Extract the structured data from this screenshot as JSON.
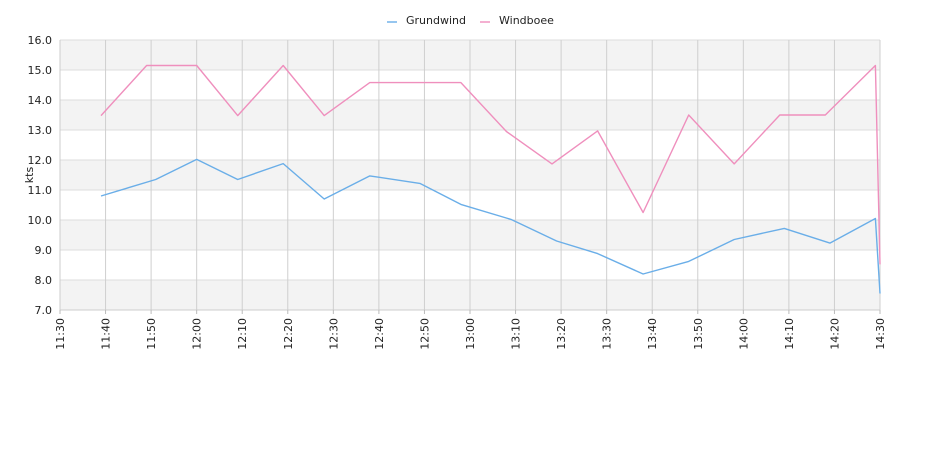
{
  "chart_data": {
    "type": "line",
    "title": "",
    "xlabel": "",
    "ylabel": "kts",
    "ylim": [
      7.0,
      16.0
    ],
    "y_ticks": [
      "7.0",
      "8.0",
      "9.0",
      "10.0",
      "11.0",
      "12.0",
      "13.0",
      "14.0",
      "15.0",
      "16.0"
    ],
    "x_ticks": [
      "11:30",
      "11:40",
      "11:50",
      "12:00",
      "12:10",
      "12:20",
      "12:30",
      "12:40",
      "12:50",
      "13:00",
      "13:10",
      "13:20",
      "13:30",
      "13:40",
      "13:50",
      "14:00",
      "14:10",
      "14:20",
      "14:30"
    ],
    "grid": true,
    "legend_position": "top-center",
    "series": [
      {
        "name": "Grundwind",
        "color": "#6aaee8",
        "x": [
          "11:39",
          "11:51",
          "12:00",
          "12:09",
          "12:19",
          "12:28",
          "12:38",
          "12:49",
          "12:58",
          "13:09",
          "13:19",
          "13:28",
          "13:38",
          "13:48",
          "13:58",
          "14:09",
          "14:19",
          "14:29",
          "14:30"
        ],
        "values": [
          10.8,
          11.35,
          12.02,
          11.35,
          11.88,
          10.7,
          11.47,
          11.22,
          10.52,
          10.02,
          9.3,
          8.88,
          8.2,
          8.62,
          9.35,
          9.72,
          9.23,
          10.05,
          7.55
        ]
      },
      {
        "name": "Windboee",
        "color": "#ef8fbd",
        "x": [
          "11:39",
          "11:49",
          "12:00",
          "12:09",
          "12:19",
          "12:28",
          "12:38",
          "12:49",
          "12:58",
          "13:08",
          "13:18",
          "13:28",
          "13:38",
          "13:48",
          "13:58",
          "14:08",
          "14:18",
          "14:29",
          "14:30"
        ],
        "values": [
          13.48,
          15.15,
          15.15,
          13.48,
          15.15,
          13.48,
          14.58,
          14.58,
          14.58,
          12.95,
          11.87,
          12.97,
          10.25,
          13.5,
          11.87,
          13.5,
          13.5,
          15.15,
          8.52
        ]
      }
    ]
  }
}
